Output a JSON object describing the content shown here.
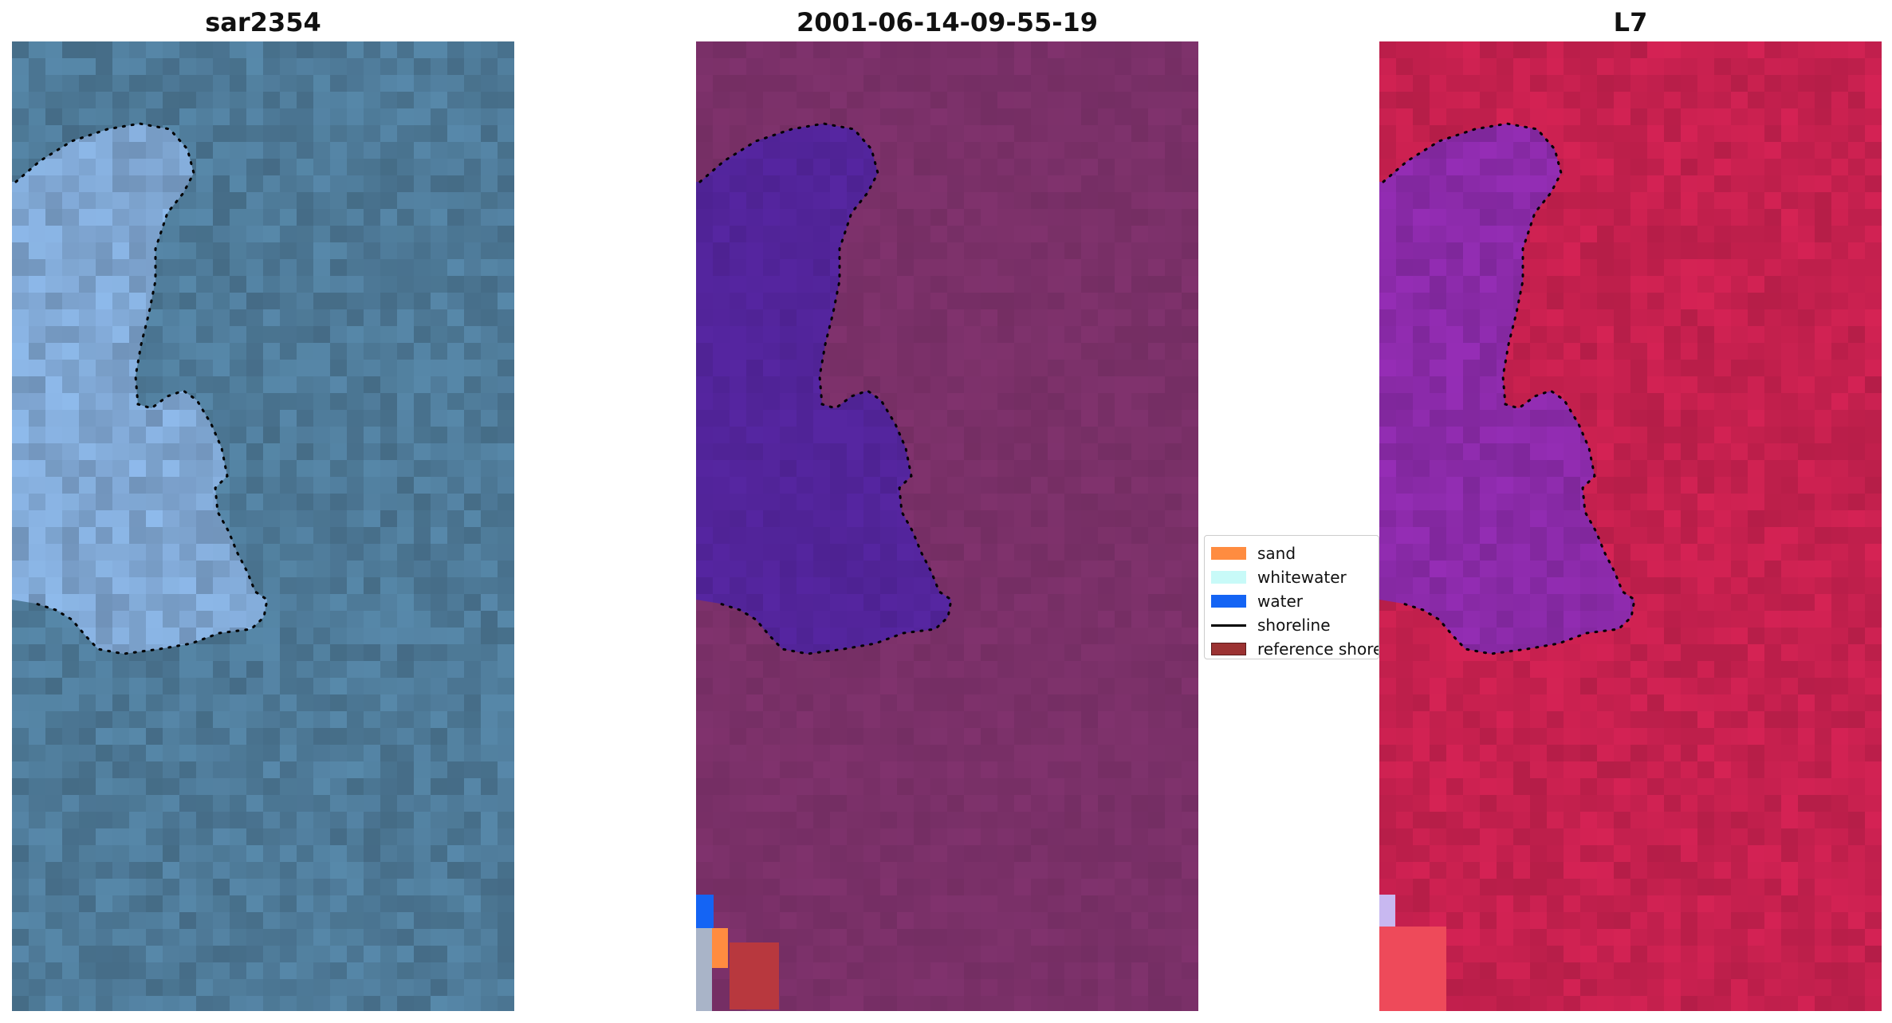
{
  "panels": [
    {
      "title": "sar2354",
      "style": "rgb"
    },
    {
      "title": "2001-06-14-09-55-19",
      "style": "classified"
    },
    {
      "title": "L7",
      "style": "index"
    }
  ],
  "legend": {
    "items": [
      {
        "label": "sand",
        "color": "#ff8c40",
        "kind": "patch"
      },
      {
        "label": "whitewater",
        "color": "#c8faf8",
        "kind": "patch"
      },
      {
        "label": "water",
        "color": "#1464f4",
        "kind": "patch"
      },
      {
        "label": "shoreline",
        "color": "#000000",
        "kind": "line"
      },
      {
        "label": "reference shoreline",
        "color": "#9b3232",
        "kind": "patch"
      }
    ]
  },
  "colors": {
    "rgb_land": "#4e7a98",
    "rgb_water": "#7fa6d2",
    "classified_land": "#7a3068",
    "classified_water": "#52249a",
    "index_land": "#c5204e",
    "index_water": "#8a2aa8"
  }
}
